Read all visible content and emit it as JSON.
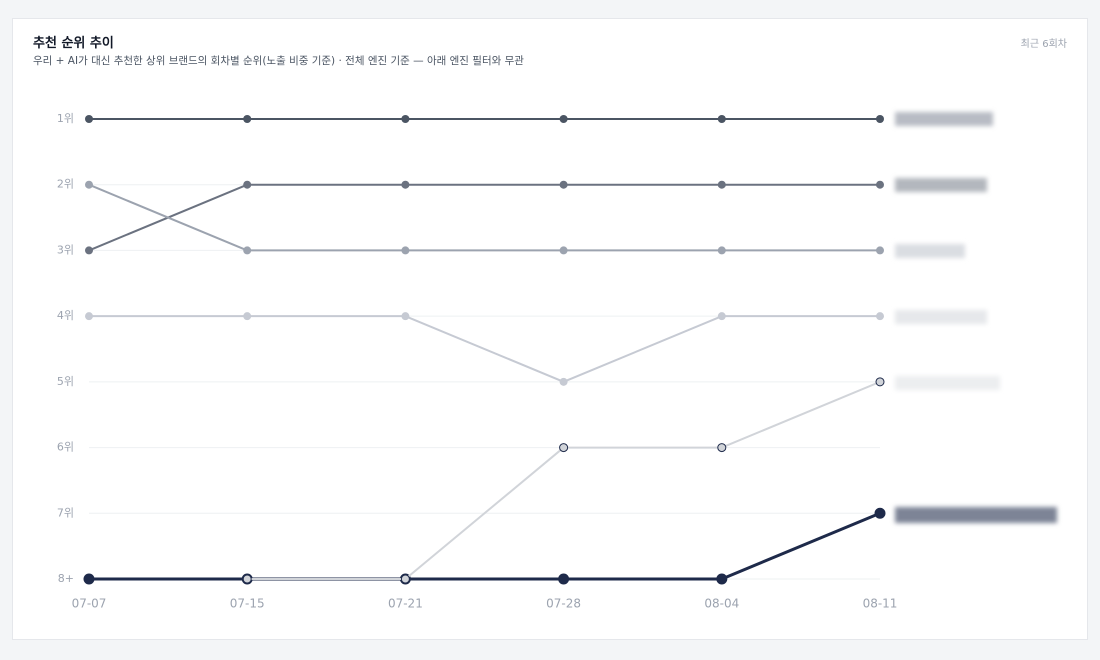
{
  "header": {
    "title": "추천 순위 추이",
    "subtitle": "우리 + AI가 대신 추천한 상위 브랜드의 회차별 순위(노출 비중 기준) · 전체 엔진 기준 — 아래 엔진 필터와 무관",
    "badge": "최근 6회차"
  },
  "chart_data": {
    "type": "line",
    "categories": [
      "07-07",
      "07-15",
      "07-21",
      "07-28",
      "08-04",
      "08-11"
    ],
    "ylim": [
      1,
      8
    ],
    "y_inverted": true,
    "yticks": [
      {
        "value": 1,
        "label": "1위"
      },
      {
        "value": 2,
        "label": "2위"
      },
      {
        "value": 3,
        "label": "3위"
      },
      {
        "value": 4,
        "label": "4위"
      },
      {
        "value": 5,
        "label": "5위"
      },
      {
        "value": 6,
        "label": "6위"
      },
      {
        "value": 7,
        "label": "7위"
      },
      {
        "value": 8,
        "label": "8+"
      }
    ],
    "grid": true,
    "series": [
      {
        "color": "#4b5563",
        "values": [
          1,
          1,
          1,
          1,
          1,
          1
        ]
      },
      {
        "color": "#6b7280",
        "values": [
          3,
          2,
          2,
          2,
          2,
          2
        ]
      },
      {
        "color": "#9ca3af",
        "values": [
          2,
          3,
          3,
          3,
          3,
          3
        ]
      },
      {
        "color": "#c6cad3",
        "values": [
          4,
          4,
          4,
          5,
          4,
          4
        ]
      },
      {
        "color": "#1e2a4a",
        "values": [
          8,
          8,
          8,
          8,
          8,
          7
        ],
        "highlight": true
      },
      {
        "color": "#d1d4d9",
        "values": [
          null,
          8,
          8,
          6,
          6,
          5
        ]
      }
    ]
  }
}
